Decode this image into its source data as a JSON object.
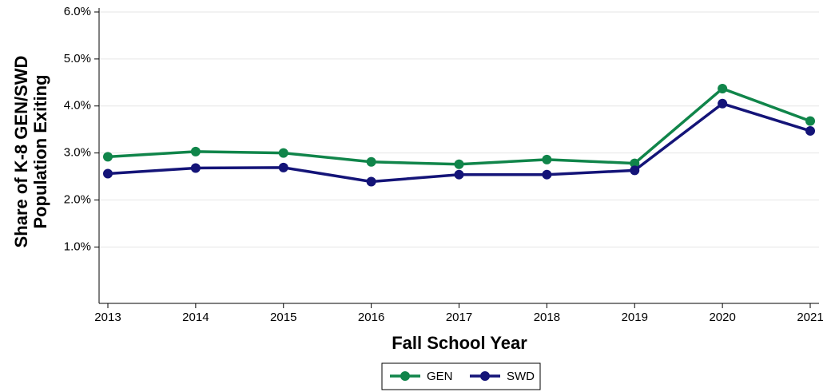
{
  "chart_data": {
    "type": "line",
    "xlabel": "Fall School Year",
    "ylabel": [
      "Share of K-8 GEN/SWD",
      "Population Exiting"
    ],
    "x": [
      2013,
      2014,
      2015,
      2016,
      2017,
      2018,
      2019,
      2020,
      2021
    ],
    "series": [
      {
        "name": "GEN",
        "color": "#10854a",
        "values": [
          2.92,
          3.03,
          3.0,
          2.81,
          2.76,
          2.86,
          2.78,
          4.37,
          3.68
        ]
      },
      {
        "name": "SWD",
        "color": "#141478",
        "values": [
          2.56,
          2.68,
          2.69,
          2.39,
          2.54,
          2.54,
          2.63,
          4.05,
          3.47
        ]
      }
    ],
    "xlim": [
      2012.9,
      2021.1
    ],
    "xticks": [
      2013,
      2014,
      2015,
      2016,
      2017,
      2018,
      2019,
      2020,
      2021
    ],
    "ylim": [
      -0.2,
      6
    ],
    "yticks": [
      {
        "value": 1,
        "label": "1.0%"
      },
      {
        "value": 2,
        "label": "2.0%"
      },
      {
        "value": 3,
        "label": "3.0%"
      },
      {
        "value": 4,
        "label": "4.0%"
      },
      {
        "value": 5,
        "label": "5.0%"
      },
      {
        "value": 6,
        "label": "6.0%"
      }
    ],
    "grid": true,
    "legend": "bottom"
  }
}
